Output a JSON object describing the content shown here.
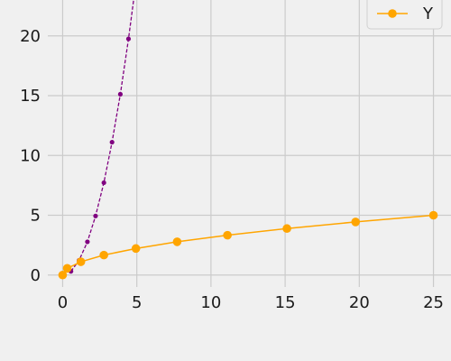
{
  "chart_data": {
    "type": "line",
    "title": "",
    "xlabel": "",
    "ylabel": "",
    "xlim": [
      -1,
      26
    ],
    "ylim": [
      -1,
      23
    ],
    "xticks": [
      0,
      5,
      10,
      15,
      20,
      25
    ],
    "yticks": [
      0,
      5,
      10,
      15,
      20
    ],
    "grid": true,
    "legend_position": "top-right",
    "series": [
      {
        "name": "",
        "color": "#800080",
        "line_style": "dashed",
        "marker": "small-circle",
        "in_legend": false,
        "x": [
          0.56,
          1.11,
          1.67,
          2.22,
          2.78,
          3.33,
          3.89,
          4.44,
          5.0
        ],
        "y": [
          0.31,
          1.23,
          2.78,
          4.94,
          7.72,
          11.11,
          15.12,
          19.75,
          25.0
        ]
      },
      {
        "name": "Y",
        "color": "#ffa500",
        "line_style": "solid",
        "marker": "circle",
        "in_legend": true,
        "x": [
          0.0,
          0.31,
          1.23,
          2.78,
          4.94,
          7.72,
          11.11,
          15.12,
          19.75,
          25.0
        ],
        "y": [
          0.0,
          0.56,
          1.11,
          1.67,
          2.22,
          2.78,
          3.33,
          3.89,
          4.44,
          5.0
        ]
      }
    ]
  }
}
